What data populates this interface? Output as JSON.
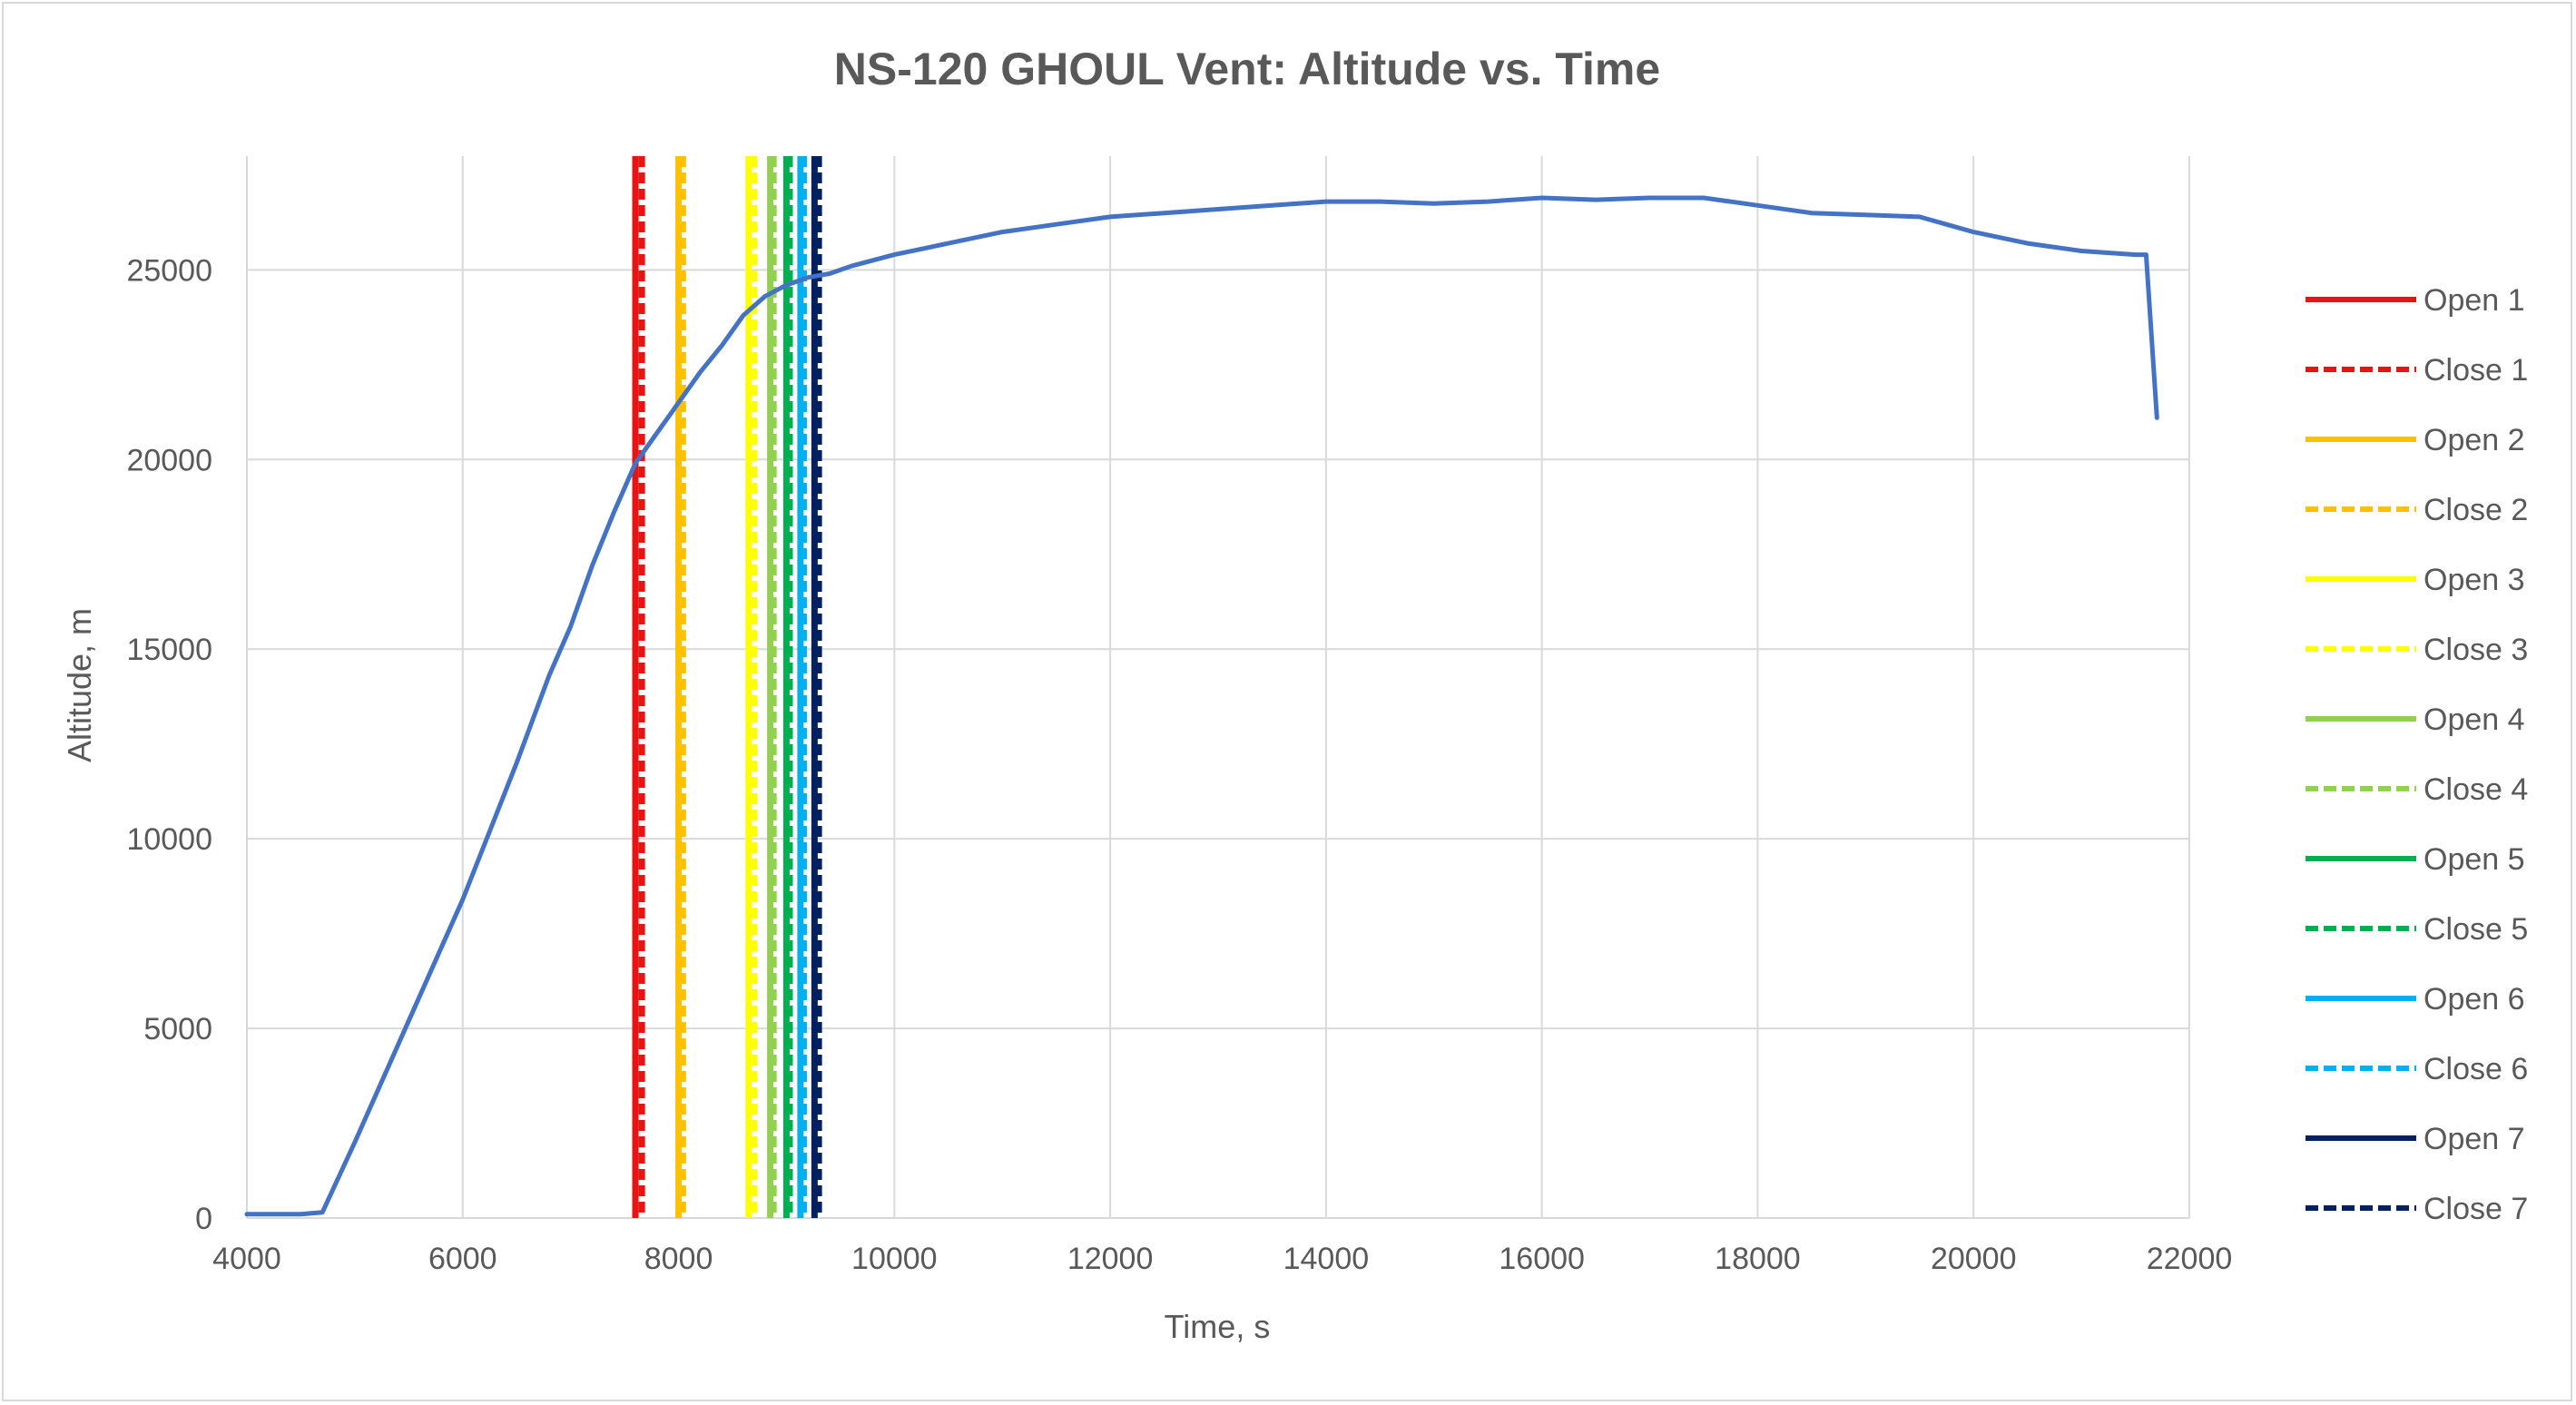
{
  "chart_data": {
    "type": "line",
    "title": "NS-120 GHOUL Vent: Altitude vs. Time",
    "xlabel": "Time, s",
    "ylabel": "Altitude, m",
    "xlim": [
      4000,
      22000
    ],
    "ylim": [
      0,
      28000
    ],
    "xticks": [
      4000,
      6000,
      8000,
      10000,
      12000,
      14000,
      16000,
      18000,
      20000,
      22000
    ],
    "yticks": [
      0,
      5000,
      10000,
      15000,
      20000,
      25000
    ],
    "xtick_labels": [
      "4000",
      "6000",
      "8000",
      "10000",
      "12000",
      "14000",
      "16000",
      "18000",
      "20000",
      "22000"
    ],
    "ytick_labels": [
      "0",
      "5000",
      "10000",
      "15000",
      "20000",
      "25000"
    ],
    "grid": true,
    "legend_position": "right",
    "series": [
      {
        "color": "#4472c4",
        "x": [
          4000,
          4500,
          4700,
          5000,
          5500,
          6000,
          6500,
          6800,
          7000,
          7200,
          7400,
          7600,
          7800,
          8000,
          8200,
          8400,
          8600,
          8800,
          9000,
          9200,
          9400,
          9600,
          10000,
          10500,
          11000,
          11500,
          12000,
          12500,
          13000,
          13500,
          14000,
          14500,
          15000,
          15500,
          16000,
          16500,
          17000,
          17500,
          18000,
          18500,
          19000,
          19500,
          20000,
          20500,
          21000,
          21500,
          21600,
          21700
        ],
        "y": [
          100,
          100,
          150,
          2000,
          5200,
          8400,
          12000,
          14300,
          15600,
          17200,
          18600,
          19900,
          20700,
          21500,
          22300,
          23000,
          23800,
          24300,
          24600,
          24800,
          24900,
          25100,
          25400,
          25700,
          26000,
          26200,
          26400,
          26500,
          26600,
          26700,
          26800,
          26800,
          26750,
          26800,
          26900,
          26850,
          26900,
          26900,
          26700,
          26500,
          26450,
          26400,
          26000,
          25700,
          25500,
          25400,
          25400,
          21100
        ]
      }
    ],
    "vent_events": [
      {
        "name": "Open 1",
        "x": 7600,
        "color": "#e81313",
        "dash": false
      },
      {
        "name": "Close 1",
        "x": 7660,
        "color": "#e81313",
        "dash": true
      },
      {
        "name": "Open 2",
        "x": 8000,
        "color": "#ffc000",
        "dash": false
      },
      {
        "name": "Close 2",
        "x": 8040,
        "color": "#ffc000",
        "dash": true
      },
      {
        "name": "Open 3",
        "x": 8650,
        "color": "#ffff00",
        "dash": false
      },
      {
        "name": "Close 3",
        "x": 8700,
        "color": "#ffff00",
        "dash": true
      },
      {
        "name": "Open 4",
        "x": 8850,
        "color": "#92d050",
        "dash": false
      },
      {
        "name": "Close 4",
        "x": 8880,
        "color": "#92d050",
        "dash": true
      },
      {
        "name": "Open 5",
        "x": 9000,
        "color": "#00b050",
        "dash": false
      },
      {
        "name": "Close 5",
        "x": 9030,
        "color": "#00b050",
        "dash": true
      },
      {
        "name": "Open 6",
        "x": 9130,
        "color": "#00b0f0",
        "dash": false
      },
      {
        "name": "Close 6",
        "x": 9160,
        "color": "#00b0f0",
        "dash": true
      },
      {
        "name": "Open 7",
        "x": 9260,
        "color": "#002060",
        "dash": false
      },
      {
        "name": "Close 7",
        "x": 9300,
        "color": "#002060",
        "dash": true
      }
    ]
  }
}
